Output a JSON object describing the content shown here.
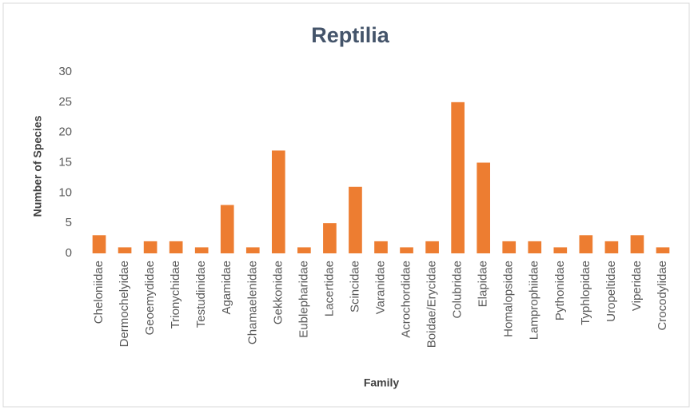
{
  "chart_data": {
    "type": "bar",
    "title": "Reptilia",
    "x_label": "Family",
    "y_label": "Number of Species",
    "categories": [
      "Cheloniidae",
      "Dermochelyidae",
      "Geoemydidae",
      "Trionychidae",
      "Testudinidae",
      "Agamidae",
      "Chamaelenidae",
      "Gekkonidae",
      "Eublepharidae",
      "Lacertidae",
      "Scincidae",
      "Varanidae",
      "Acrochordidae",
      "Boidae/Erycidae",
      "Colubridae",
      "Elapidae",
      "Homalopsidae",
      "Lamprophiidae",
      "Pythonidae",
      "Typhlopidae",
      "Uropeltidae",
      "Viperidae",
      "Crocodylidae"
    ],
    "values": [
      3,
      1,
      2,
      2,
      1,
      8,
      1,
      17,
      1,
      5,
      11,
      2,
      1,
      2,
      25,
      15,
      2,
      2,
      1,
      3,
      2,
      3,
      1
    ],
    "color": "#ed7d31",
    "ylim": [
      0,
      30
    ],
    "yticks": [
      0,
      5,
      10,
      15,
      20,
      25,
      30
    ],
    "grid": false
  }
}
